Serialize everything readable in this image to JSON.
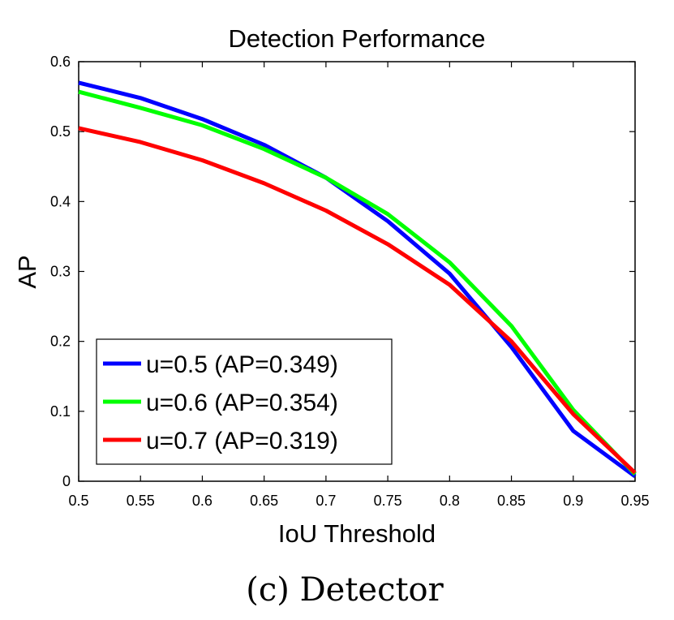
{
  "caption": "(c) Detector",
  "chart_data": {
    "type": "line",
    "title": "Detection Performance",
    "xlabel": "IoU Threshold",
    "ylabel": "AP",
    "xlim": [
      0.5,
      0.95
    ],
    "ylim": [
      0,
      0.6
    ],
    "xticks": [
      "0.5",
      "0.55",
      "0.6",
      "0.65",
      "0.7",
      "0.75",
      "0.8",
      "0.85",
      "0.9",
      "0.95"
    ],
    "yticks": [
      "0",
      "0.1",
      "0.2",
      "0.3",
      "0.4",
      "0.5",
      "0.6"
    ],
    "grid": false,
    "legend_position": "bottom-left",
    "x": [
      0.5,
      0.55,
      0.6,
      0.65,
      0.7,
      0.75,
      0.8,
      0.85,
      0.9,
      0.95
    ],
    "series": [
      {
        "name": "u=0.5 (AP=0.349)",
        "color": "#0000ff",
        "values": [
          0.57,
          0.548,
          0.518,
          0.481,
          0.434,
          0.372,
          0.297,
          0.192,
          0.072,
          0.007
        ]
      },
      {
        "name": "u=0.6 (AP=0.354)",
        "color": "#00ff00",
        "values": [
          0.557,
          0.534,
          0.509,
          0.475,
          0.434,
          0.382,
          0.313,
          0.222,
          0.102,
          0.01
        ]
      },
      {
        "name": "u=0.7 (AP=0.319)",
        "color": "#ff0000",
        "values": [
          0.505,
          0.485,
          0.459,
          0.426,
          0.387,
          0.339,
          0.281,
          0.2,
          0.096,
          0.012
        ]
      }
    ]
  }
}
